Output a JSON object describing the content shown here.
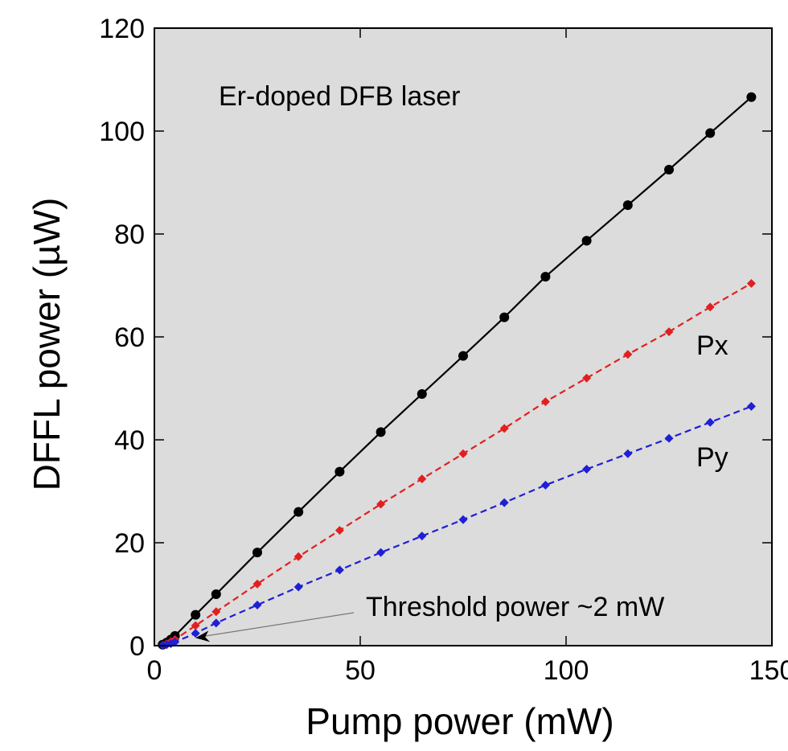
{
  "chart_data": {
    "type": "line",
    "title": "",
    "annotation": "Er-doped DFB laser",
    "threshold_annotation": "Threshold power ~2 mW",
    "threshold_arrow_target": {
      "x": 10,
      "y": 1.5
    },
    "xlabel": "Pump power (mW)",
    "ylabel": "DFFL power (µW)",
    "xlim": [
      0,
      150
    ],
    "ylim": [
      0,
      120
    ],
    "xticks": [
      0,
      50,
      100,
      150
    ],
    "yticks": [
      0,
      20,
      40,
      60,
      80,
      100,
      120
    ],
    "xtick_labels": [
      "0",
      "50",
      "100",
      "150"
    ],
    "ytick_labels": [
      "0",
      "20",
      "40",
      "60",
      "80",
      "100",
      "120"
    ],
    "grid": false,
    "plot_background": "#dcdcdc",
    "series": [
      {
        "name": "",
        "color": "#000000",
        "marker": "circle",
        "line_style": "solid",
        "x": [
          2,
          3,
          4,
          5,
          10,
          15,
          25,
          35,
          45,
          55,
          65,
          75,
          85,
          95,
          105,
          115,
          125,
          135,
          145
        ],
        "y": [
          0.2,
          0.6,
          1.2,
          1.9,
          6.0,
          10.0,
          18.1,
          26.0,
          33.8,
          41.5,
          48.9,
          56.3,
          63.8,
          71.7,
          78.7,
          85.6,
          92.5,
          99.6,
          106.6
        ]
      },
      {
        "name": "Px",
        "color": "#e02020",
        "marker": "diamond",
        "line_style": "dashed",
        "x": [
          2,
          3,
          4,
          5,
          10,
          15,
          25,
          35,
          45,
          55,
          65,
          75,
          85,
          95,
          105,
          115,
          125,
          135,
          145
        ],
        "y": [
          0.1,
          0.4,
          0.8,
          1.2,
          3.9,
          6.6,
          12.0,
          17.3,
          22.4,
          27.5,
          32.4,
          37.3,
          42.2,
          47.4,
          52.0,
          56.6,
          61.0,
          65.8,
          70.4
        ]
      },
      {
        "name": "Py",
        "color": "#1f1fd6",
        "marker": "diamond",
        "line_style": "dashed",
        "x": [
          2,
          3,
          4,
          5,
          10,
          15,
          25,
          35,
          45,
          55,
          65,
          75,
          85,
          95,
          105,
          115,
          125,
          135,
          145
        ],
        "y": [
          0.05,
          0.2,
          0.4,
          0.7,
          2.4,
          4.4,
          7.9,
          11.4,
          14.7,
          18.1,
          21.3,
          24.5,
          27.8,
          31.2,
          34.3,
          37.3,
          40.3,
          43.4,
          46.5
        ]
      }
    ]
  }
}
